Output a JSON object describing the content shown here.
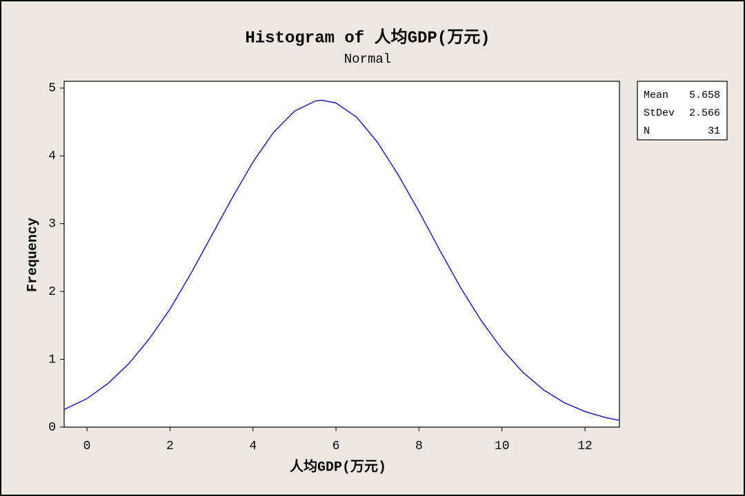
{
  "chart_data": {
    "type": "line",
    "title": "Histogram of 人均GDP(万元)",
    "subtitle": "Normal",
    "x_label": "人均GDP(万元)",
    "y_label": "Frequency",
    "x": [
      -0.55,
      0,
      0.5,
      1,
      1.5,
      2,
      2.5,
      3,
      3.5,
      4,
      4.5,
      5,
      5.5,
      5.658,
      6,
      6.5,
      7,
      7.5,
      8,
      8.5,
      9,
      9.5,
      10,
      10.5,
      11,
      11.5,
      12,
      12.5,
      12.83
    ],
    "series": [
      {
        "name": "Normal",
        "color": "#1c1cc8",
        "values": [
          0.26,
          0.42,
          0.64,
          0.93,
          1.3,
          1.74,
          2.26,
          2.82,
          3.38,
          3.91,
          4.35,
          4.66,
          4.81,
          4.82,
          4.78,
          4.57,
          4.2,
          3.72,
          3.18,
          2.61,
          2.06,
          1.57,
          1.15,
          0.81,
          0.55,
          0.36,
          0.23,
          0.14,
          0.1
        ]
      }
    ],
    "xlim": [
      -0.55,
      12.83
    ],
    "ylim": [
      0,
      5.1
    ],
    "xticks": [
      0,
      2,
      4,
      6,
      8,
      10,
      12
    ],
    "yticks": [
      0,
      1,
      2,
      3,
      4,
      5
    ],
    "stats": [
      {
        "label": "Mean",
        "value": 5.658
      },
      {
        "label": "StDev",
        "value": 2.566
      },
      {
        "label": "N",
        "value": 31
      }
    ]
  }
}
